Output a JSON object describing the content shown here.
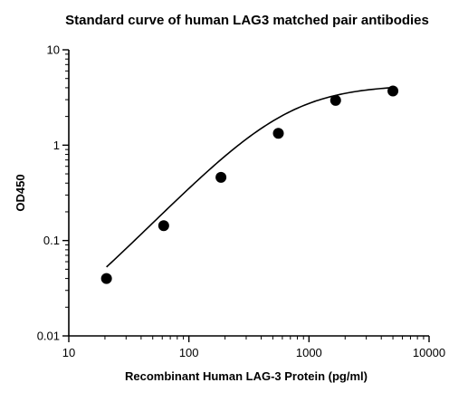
{
  "chart_data": {
    "type": "scatter",
    "title": "Standard curve of human LAG3 matched pair antibodies",
    "xlabel": "Recombinant Human LAG-3 Protein (pg/ml)",
    "ylabel": "OD450",
    "x_scale": "log",
    "y_scale": "log",
    "xlim": [
      10,
      10000
    ],
    "ylim": [
      0.01,
      10
    ],
    "x_ticks": [
      10,
      100,
      1000,
      10000
    ],
    "x_tick_labels": [
      "10",
      "100",
      "1000",
      "10000"
    ],
    "y_ticks": [
      0.01,
      0.1,
      1,
      10
    ],
    "y_tick_labels": [
      "0.01",
      "0.1",
      "1",
      "10"
    ],
    "grid": false,
    "legend": "none",
    "series": [
      {
        "x": [
          20.6,
          61.7,
          185,
          556,
          1667,
          5000
        ],
        "y": [
          0.04,
          0.143,
          0.46,
          1.33,
          2.95,
          3.7
        ]
      }
    ],
    "fit_curve": {
      "type": "4PL",
      "bottom": 0.005,
      "top": 4.3,
      "ec50": 650,
      "hill": 1.3
    },
    "colors": {
      "marker": "#000000",
      "line": "#000000",
      "axis": "#000000"
    }
  }
}
